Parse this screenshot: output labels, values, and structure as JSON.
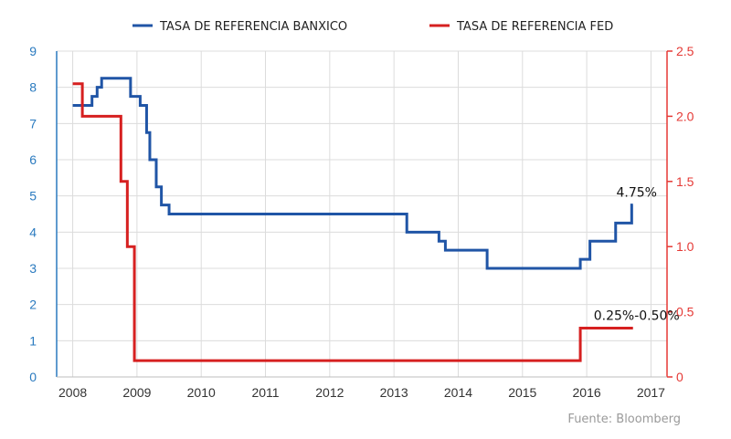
{
  "chart_data": {
    "type": "line",
    "title": "",
    "xlabel": "",
    "ylabel": "",
    "source": "Fuente: Bloomberg",
    "legend_position": "top",
    "grid": true,
    "x_ticks": [
      "2008",
      "2009",
      "2010",
      "2011",
      "2012",
      "2013",
      "2014",
      "2015",
      "2016",
      "2017"
    ],
    "xlim": [
      2007.75,
      2017.25
    ],
    "y_left": {
      "ticks": [
        "0",
        "1",
        "2",
        "3",
        "4",
        "5",
        "6",
        "7",
        "8",
        "9"
      ],
      "ylim": [
        0,
        9
      ],
      "color": "#2a7abf"
    },
    "y_right": {
      "ticks": [
        "0",
        "0.5",
        "1.0",
        "1.5",
        "2.0",
        "2.5"
      ],
      "ylim": [
        0,
        2.5
      ],
      "color": "#e53935"
    },
    "series": [
      {
        "name": "TASA DE REFERENCIA BANXICO",
        "axis": "left",
        "color": "#2055a6",
        "step": true,
        "points": [
          [
            2008.0,
            7.5
          ],
          [
            2008.3,
            7.75
          ],
          [
            2008.38,
            8.0
          ],
          [
            2008.45,
            8.25
          ],
          [
            2008.9,
            7.75
          ],
          [
            2009.05,
            7.5
          ],
          [
            2009.15,
            6.75
          ],
          [
            2009.2,
            6.0
          ],
          [
            2009.3,
            5.25
          ],
          [
            2009.38,
            4.75
          ],
          [
            2009.5,
            4.5
          ],
          [
            2013.2,
            4.0
          ],
          [
            2013.7,
            3.75
          ],
          [
            2013.8,
            3.5
          ],
          [
            2014.45,
            3.0
          ],
          [
            2015.9,
            3.25
          ],
          [
            2016.05,
            3.75
          ],
          [
            2016.45,
            4.25
          ],
          [
            2016.7,
            4.75
          ],
          [
            2016.72,
            4.75
          ]
        ],
        "end_label": "4.75%"
      },
      {
        "name": "TASA DE REFERENCIA FED",
        "axis": "right",
        "color": "#d62020",
        "step": true,
        "points": [
          [
            2008.0,
            2.25
          ],
          [
            2008.15,
            2.0
          ],
          [
            2008.75,
            1.5
          ],
          [
            2008.85,
            1.0
          ],
          [
            2008.96,
            0.125
          ],
          [
            2015.9,
            0.375
          ],
          [
            2016.72,
            0.375
          ]
        ],
        "end_label": "0.25%-0.50%"
      }
    ]
  }
}
